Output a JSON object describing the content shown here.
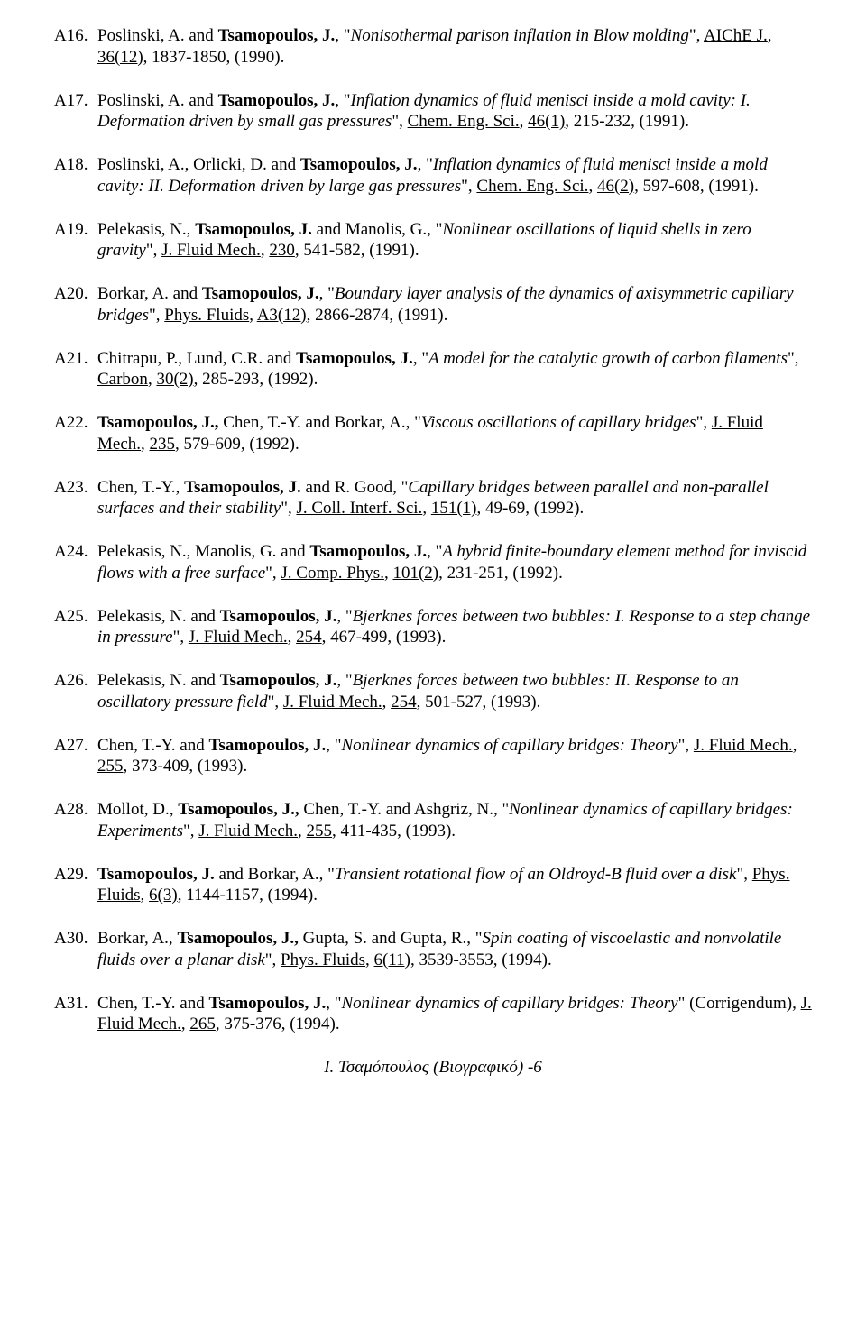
{
  "footer": "I. Τσαμόπουλος (Βιογραφικό) -6",
  "font": {
    "family": "Times New Roman",
    "size_pt": 14
  },
  "colors": {
    "text": "#000000",
    "background": "#ffffff"
  },
  "entries": [
    {
      "tag": "A16.",
      "runs": [
        {
          "t": "Poslinski, A. and "
        },
        {
          "t": "Tsamopoulos, J.",
          "b": true
        },
        {
          "t": ", \""
        },
        {
          "t": "Nonisothermal parison inflation in Blow molding",
          "i": true
        },
        {
          "t": "\", "
        },
        {
          "t": "AIChE J.",
          "u": true
        },
        {
          "t": ", "
        },
        {
          "t": "36(12)",
          "u": true
        },
        {
          "t": ", 1837-1850, (1990)."
        }
      ]
    },
    {
      "tag": "A17.",
      "runs": [
        {
          "t": "Poslinski, A. and "
        },
        {
          "t": "Tsamopoulos, J.",
          "b": true
        },
        {
          "t": ", \""
        },
        {
          "t": "Inflation dynamics of fluid menisci inside a mold cavity: I. Deformation driven by small gas pressures",
          "i": true
        },
        {
          "t": "\", "
        },
        {
          "t": "Chem. Eng. Sci.",
          "u": true
        },
        {
          "t": ", "
        },
        {
          "t": "46(1)",
          "u": true
        },
        {
          "t": ", 215-232, (1991)."
        }
      ]
    },
    {
      "tag": "A18.",
      "runs": [
        {
          "t": "Poslinski, A., Orlicki, D. and "
        },
        {
          "t": "Tsamopoulos, J.",
          "b": true
        },
        {
          "t": ", \""
        },
        {
          "t": "Inflation dynamics of fluid menisci inside a mold cavity: II. Deformation driven by large gas pressures",
          "i": true
        },
        {
          "t": "\", "
        },
        {
          "t": "Chem. Eng. Sci.",
          "u": true
        },
        {
          "t": ", "
        },
        {
          "t": "46(2)",
          "u": true
        },
        {
          "t": ", 597-608, (1991)."
        }
      ]
    },
    {
      "tag": "A19.",
      "runs": [
        {
          "t": "Pelekasis, N., "
        },
        {
          "t": "Tsamopoulos, J.",
          "b": true
        },
        {
          "t": " and Manolis, G., \""
        },
        {
          "t": "Nonlinear oscillations of liquid shells in zero gravity",
          "i": true
        },
        {
          "t": "\", "
        },
        {
          "t": "J. Fluid Mech.",
          "u": true
        },
        {
          "t": ", "
        },
        {
          "t": "230",
          "u": true
        },
        {
          "t": ", 541-582, (1991)."
        }
      ]
    },
    {
      "tag": "A20.",
      "runs": [
        {
          "t": "Borkar, A. and "
        },
        {
          "t": "Tsamopoulos, J.",
          "b": true
        },
        {
          "t": ", \""
        },
        {
          "t": "Boundary layer analysis of the dynamics of axisymmetric capillary bridges",
          "i": true
        },
        {
          "t": "\", "
        },
        {
          "t": "Phys. Fluids",
          "u": true
        },
        {
          "t": ", "
        },
        {
          "t": "A3(12)",
          "u": true
        },
        {
          "t": ", 2866-2874, (1991)."
        }
      ]
    },
    {
      "tag": "A21.",
      "runs": [
        {
          "t": "Chitrapu, P., Lund, C.R. and "
        },
        {
          "t": "Tsamopoulos, J.",
          "b": true
        },
        {
          "t": ", \""
        },
        {
          "t": "A model for the catalytic growth of carbon filaments",
          "i": true
        },
        {
          "t": "\", "
        },
        {
          "t": "Carbon",
          "u": true
        },
        {
          "t": ", "
        },
        {
          "t": "30(2)",
          "u": true
        },
        {
          "t": ", 285-293, (1992)."
        }
      ]
    },
    {
      "tag": "A22.",
      "runs": [
        {
          "t": "Tsamopoulos, J.,",
          "b": true
        },
        {
          "t": " Chen, T.-Y. and Borkar, A., \""
        },
        {
          "t": "Viscous oscillations of capillary bridges",
          "i": true
        },
        {
          "t": "\", "
        },
        {
          "t": "J. Fluid Mech.",
          "u": true
        },
        {
          "t": ", "
        },
        {
          "t": "235",
          "u": true
        },
        {
          "t": ", 579-609, (1992)."
        }
      ]
    },
    {
      "tag": "A23.",
      "runs": [
        {
          "t": "Chen, T.-Y., "
        },
        {
          "t": "Tsamopoulos, J.",
          "b": true
        },
        {
          "t": " and R. Good, \""
        },
        {
          "t": "Capillary bridges between parallel and non-parallel surfaces and their stability",
          "i": true
        },
        {
          "t": "\", "
        },
        {
          "t": "J. Coll. Interf. Sci.",
          "u": true
        },
        {
          "t": ", "
        },
        {
          "t": "151(1)",
          "u": true
        },
        {
          "t": ", 49-69, (1992)."
        }
      ]
    },
    {
      "tag": "A24.",
      "runs": [
        {
          "t": "Pelekasis, N., Manolis, G. and "
        },
        {
          "t": "Tsamopoulos, J.",
          "b": true
        },
        {
          "t": ", \""
        },
        {
          "t": "A hybrid finite-boundary element method for inviscid flows with a free surface",
          "i": true
        },
        {
          "t": "\", "
        },
        {
          "t": "J. Comp. Phys.",
          "u": true
        },
        {
          "t": ", "
        },
        {
          "t": "101(2)",
          "u": true
        },
        {
          "t": ", 231-251, (1992)."
        }
      ]
    },
    {
      "tag": "A25.",
      "runs": [
        {
          "t": "Pelekasis, N. and "
        },
        {
          "t": "Tsamopoulos, J.",
          "b": true
        },
        {
          "t": ", \""
        },
        {
          "t": "Bjerknes forces between two bubbles: I. Response to a step change in pressure",
          "i": true
        },
        {
          "t": "\", "
        },
        {
          "t": "J. Fluid Mech.",
          "u": true
        },
        {
          "t": ", "
        },
        {
          "t": "254",
          "u": true
        },
        {
          "t": ", 467-499, (1993)."
        }
      ]
    },
    {
      "tag": "A26.",
      "runs": [
        {
          "t": "Pelekasis, N. and "
        },
        {
          "t": "Tsamopoulos, J.",
          "b": true
        },
        {
          "t": ", \""
        },
        {
          "t": "Bjerknes forces between two bubbles: II. Response to an oscillatory pressure field",
          "i": true
        },
        {
          "t": "\", "
        },
        {
          "t": "J. Fluid Mech.",
          "u": true
        },
        {
          "t": ", "
        },
        {
          "t": "254",
          "u": true
        },
        {
          "t": ", 501-527, (1993)."
        }
      ]
    },
    {
      "tag": "A27.",
      "runs": [
        {
          "t": "Chen, T.-Y. and "
        },
        {
          "t": "Tsamopoulos, J.",
          "b": true
        },
        {
          "t": ", \""
        },
        {
          "t": "Nonlinear dynamics of capillary bridges: Theory",
          "i": true
        },
        {
          "t": "\", "
        },
        {
          "t": "J. Fluid Mech.",
          "u": true
        },
        {
          "t": ", "
        },
        {
          "t": "255",
          "u": true
        },
        {
          "t": ", 373-409, (1993)."
        }
      ]
    },
    {
      "tag": "A28.",
      "runs": [
        {
          "t": "Mollot, D., "
        },
        {
          "t": "Tsamopoulos, J.,",
          "b": true
        },
        {
          "t": " Chen, T.-Y. and Ashgriz, N., \""
        },
        {
          "t": "Nonlinear dynamics of capillary bridges: Experiments",
          "i": true
        },
        {
          "t": "\", "
        },
        {
          "t": "J. Fluid Mech.",
          "u": true
        },
        {
          "t": ", "
        },
        {
          "t": "255",
          "u": true
        },
        {
          "t": ", 411-435, (1993)."
        }
      ]
    },
    {
      "tag": "A29.",
      "runs": [
        {
          "t": "Tsamopoulos, J.",
          "b": true
        },
        {
          "t": " and Borkar, A., \""
        },
        {
          "t": "Transient rotational flow of an Oldroyd-B fluid over a disk",
          "i": true
        },
        {
          "t": "\", "
        },
        {
          "t": "Phys. Fluids",
          "u": true
        },
        {
          "t": ", "
        },
        {
          "t": "6(3)",
          "u": true
        },
        {
          "t": ", 1144-1157, (1994)."
        }
      ]
    },
    {
      "tag": "A30.",
      "runs": [
        {
          "t": "Borkar, A., "
        },
        {
          "t": "Tsamopoulos, J.,",
          "b": true
        },
        {
          "t": " Gupta, S. and Gupta, R., \""
        },
        {
          "t": "Spin coating of viscoelastic and nonvolatile fluids over a planar disk",
          "i": true
        },
        {
          "t": "\", "
        },
        {
          "t": "Phys. Fluids",
          "u": true
        },
        {
          "t": ", "
        },
        {
          "t": "6(11)",
          "u": true
        },
        {
          "t": ", 3539-3553, (1994)."
        }
      ]
    },
    {
      "tag": "A31.",
      "runs": [
        {
          "t": "Chen, T.-Y. and "
        },
        {
          "t": "Tsamopoulos, J.",
          "b": true
        },
        {
          "t": ", \""
        },
        {
          "t": "Nonlinear dynamics of capillary bridges: Theory",
          "i": true
        },
        {
          "t": "\" (Corrigendum), "
        },
        {
          "t": "J. Fluid Mech.",
          "u": true
        },
        {
          "t": ", "
        },
        {
          "t": "265",
          "u": true
        },
        {
          "t": ", 375-376, (1994)."
        }
      ]
    }
  ]
}
